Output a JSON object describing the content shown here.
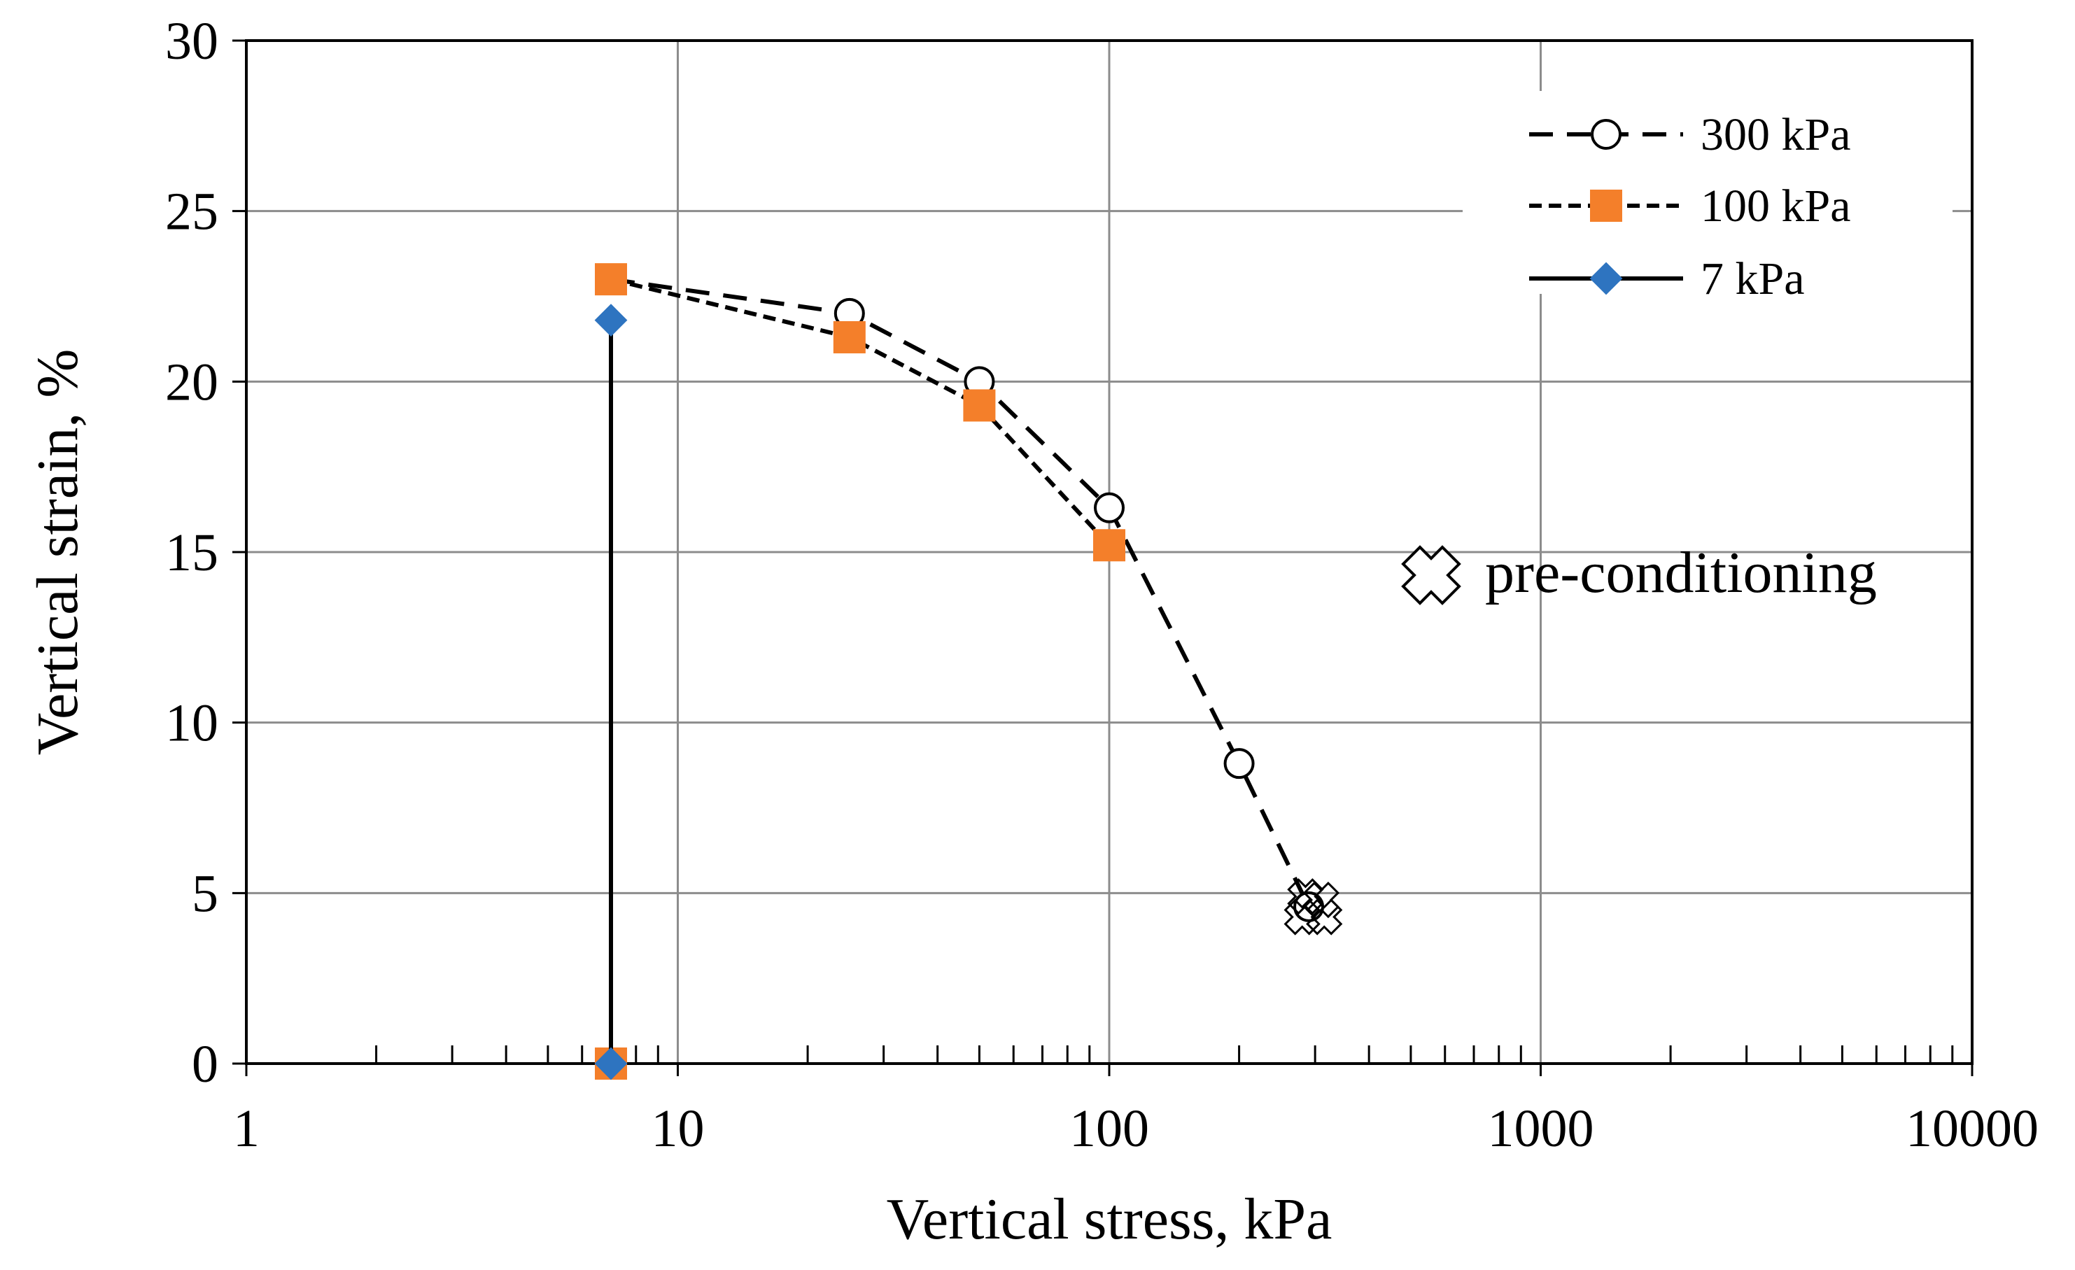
{
  "chart_data": {
    "type": "scatter",
    "title": "",
    "xlabel": "Vertical stress, kPa",
    "ylabel": "Vertical strain, %",
    "xscale": "log",
    "xlim": [
      1,
      10000
    ],
    "ylim": [
      0,
      30
    ],
    "xticks": [
      1,
      10,
      100,
      1000,
      10000
    ],
    "xtick_labels": [
      "1",
      "10",
      "100",
      "1000",
      "10000"
    ],
    "yticks": [
      0,
      5,
      10,
      15,
      20,
      25,
      30
    ],
    "ytick_labels": [
      "0",
      "5",
      "10",
      "15",
      "20",
      "25",
      "30"
    ],
    "grid": true,
    "legend_position": "top-right",
    "series": [
      {
        "name": "300 kPa",
        "line_style": "dashed",
        "marker": "open-circle",
        "color": "#000000",
        "x": [
          7,
          25,
          50,
          100,
          200,
          290
        ],
        "y": [
          23.0,
          22.0,
          20.0,
          16.3,
          8.8,
          4.6
        ]
      },
      {
        "name": "100 kPa",
        "line_style": "dotted",
        "marker": "square",
        "color": "#F47F2A",
        "x": [
          7,
          25,
          50,
          100,
          7
        ],
        "y": [
          23.0,
          21.3,
          19.3,
          15.2,
          0.0
        ],
        "connected_points": 4
      },
      {
        "name": "7 kPa",
        "line_style": "solid",
        "marker": "diamond",
        "color": "#2E74C0",
        "x": [
          7,
          7
        ],
        "y": [
          21.8,
          0.0
        ]
      }
    ],
    "annotations": [
      {
        "label": "pre-conditioning",
        "marker": "open-cross",
        "points": [
          {
            "x": 280,
            "y": 4.3
          },
          {
            "x": 310,
            "y": 4.8
          },
          {
            "x": 315,
            "y": 4.3
          },
          {
            "x": 285,
            "y": 4.9
          }
        ]
      }
    ]
  }
}
